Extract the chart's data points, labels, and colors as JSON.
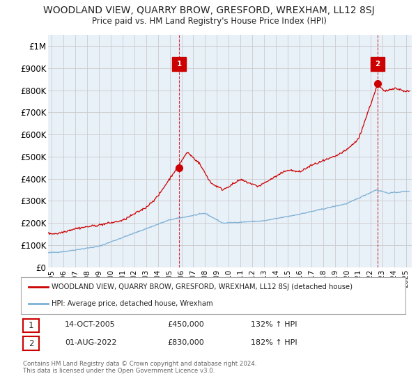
{
  "title": "WOODLAND VIEW, QUARRY BROW, GRESFORD, WREXHAM, LL12 8SJ",
  "subtitle": "Price paid vs. HM Land Registry's House Price Index (HPI)",
  "ylabel_ticks": [
    "£0",
    "£100K",
    "£200K",
    "£300K",
    "£400K",
    "£500K",
    "£600K",
    "£700K",
    "£800K",
    "£900K",
    "£1M"
  ],
  "ytick_values": [
    0,
    100000,
    200000,
    300000,
    400000,
    500000,
    600000,
    700000,
    800000,
    900000,
    1000000
  ],
  "ylim": [
    0,
    1050000
  ],
  "xlim_start": 1994.7,
  "xlim_end": 2025.5,
  "marker1_x": 2005.79,
  "marker1_y": 450000,
  "marker2_x": 2022.58,
  "marker2_y": 830000,
  "line1_color": "#cc0000",
  "line2_color": "#7bafd4",
  "legend_line1": "WOODLAND VIEW, QUARRY BROW, GRESFORD, WREXHAM, LL12 8SJ (detached house)",
  "legend_line2": "HPI: Average price, detached house, Wrexham",
  "note1_num": "1",
  "note1_date": "14-OCT-2005",
  "note1_price": "£450,000",
  "note1_hpi": "132% ↑ HPI",
  "note2_num": "2",
  "note2_date": "01-AUG-2022",
  "note2_price": "£830,000",
  "note2_hpi": "182% ↑ HPI",
  "footer": "Contains HM Land Registry data © Crown copyright and database right 2024.\nThis data is licensed under the Open Government Licence v3.0.",
  "bg_color": "#ffffff",
  "grid_color": "#cccccc",
  "chart_bg": "#e8f0f8"
}
